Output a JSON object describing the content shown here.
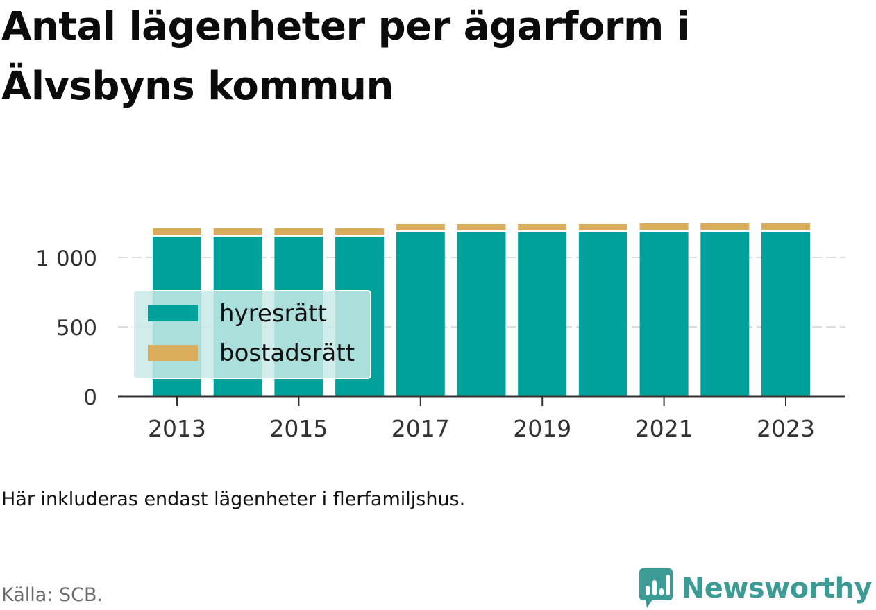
{
  "header": {
    "title": "Antal lägenheter per ägarform i Älvsbyns kommun"
  },
  "footer": {
    "note": "Här inkluderas endast lägenheter i flerfamiljshus.",
    "source": "Källa: SCB.",
    "brand": "Newsworthy",
    "brand_icon": "bar-chart-speech-bubble-icon"
  },
  "colors": {
    "hyresratt": "#00a19a",
    "bostadsratt": "#d9ad5b",
    "brand": "#3d9b95",
    "legend_bg": "#c9eae8"
  },
  "chart_data": {
    "type": "bar",
    "stacked": true,
    "title": "Antal lägenheter per ägarform i Älvsbyns kommun",
    "x": [
      2013,
      2014,
      2015,
      2016,
      2017,
      2018,
      2019,
      2020,
      2021,
      2022,
      2023
    ],
    "x_tick_labels": [
      "2013",
      "2015",
      "2017",
      "2019",
      "2021",
      "2023"
    ],
    "y_ticks": [
      0,
      500,
      1000
    ],
    "y_tick_labels": [
      "0",
      "500",
      "1 000"
    ],
    "ylim": [
      0,
      1250
    ],
    "grid": true,
    "legend_position": "left-center",
    "series": [
      {
        "name": "hyresrätt",
        "color": "#00a19a",
        "values": [
          1150,
          1150,
          1150,
          1150,
          1180,
          1180,
          1180,
          1180,
          1185,
          1185,
          1185
        ]
      },
      {
        "name": "bostadsrätt",
        "color": "#d9ad5b",
        "values": [
          60,
          60,
          60,
          60,
          60,
          60,
          60,
          60,
          60,
          60,
          60
        ]
      }
    ]
  }
}
